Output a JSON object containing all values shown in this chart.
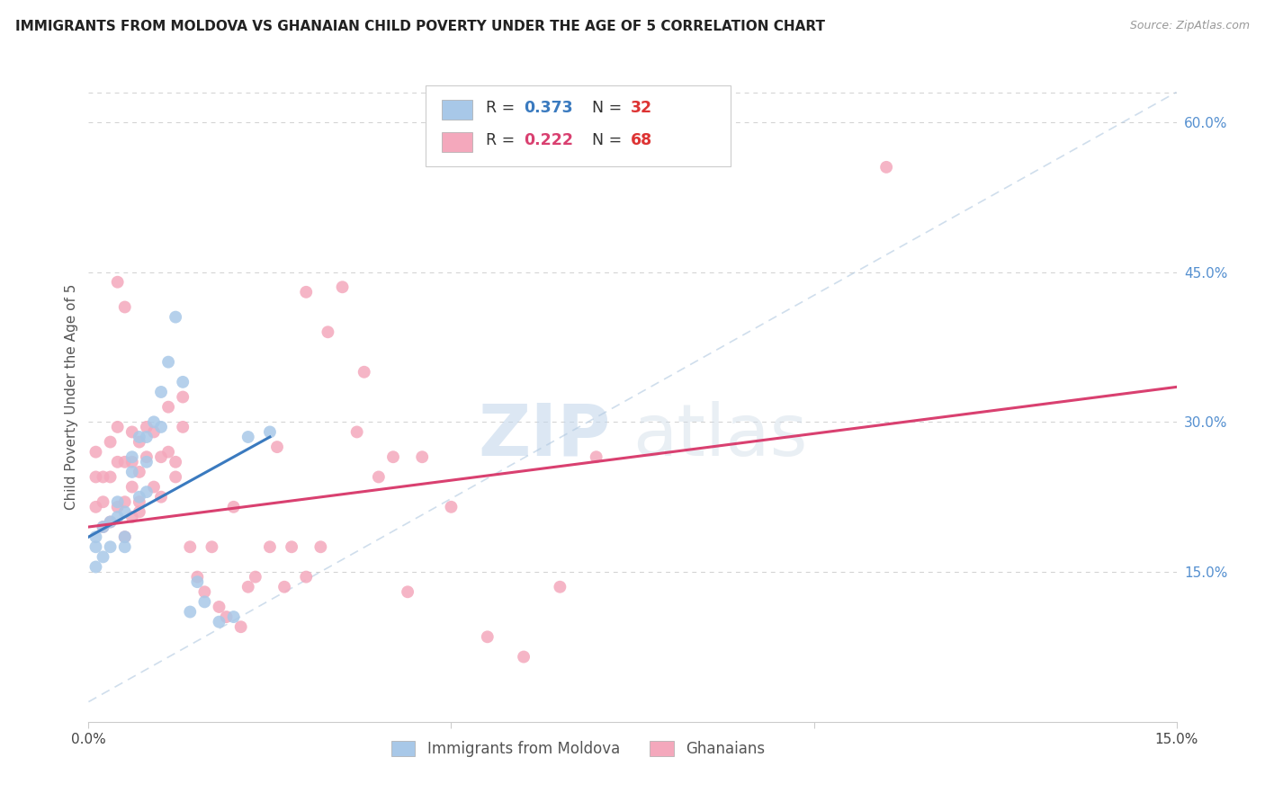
{
  "title": "IMMIGRANTS FROM MOLDOVA VS GHANAIAN CHILD POVERTY UNDER THE AGE OF 5 CORRELATION CHART",
  "source": "Source: ZipAtlas.com",
  "ylabel": "Child Poverty Under the Age of 5",
  "xlim": [
    0.0,
    0.15
  ],
  "ylim": [
    0.0,
    0.65
  ],
  "xticks": [
    0.0,
    0.05,
    0.1,
    0.15
  ],
  "xticklabels": [
    "0.0%",
    "",
    "",
    "15.0%"
  ],
  "yticks_right": [
    0.15,
    0.3,
    0.45,
    0.6
  ],
  "yticklabels_right": [
    "15.0%",
    "30.0%",
    "45.0%",
    "60.0%"
  ],
  "R_moldova": 0.373,
  "N_moldova": 32,
  "R_ghana": 0.222,
  "N_ghana": 68,
  "color_moldova": "#a8c8e8",
  "color_ghana": "#f4a8bc",
  "line_color_moldova": "#3a7abf",
  "line_color_ghana": "#d94070",
  "line_color_diagonal": "#b0c8e0",
  "watermark_zip": "ZIP",
  "watermark_atlas": "atlas",
  "moldova_scatter_x": [
    0.001,
    0.001,
    0.001,
    0.002,
    0.002,
    0.003,
    0.003,
    0.004,
    0.004,
    0.005,
    0.005,
    0.005,
    0.006,
    0.006,
    0.007,
    0.007,
    0.008,
    0.008,
    0.008,
    0.009,
    0.01,
    0.01,
    0.011,
    0.012,
    0.013,
    0.014,
    0.015,
    0.016,
    0.018,
    0.02,
    0.022,
    0.025
  ],
  "moldova_scatter_y": [
    0.155,
    0.175,
    0.185,
    0.165,
    0.195,
    0.2,
    0.175,
    0.205,
    0.22,
    0.185,
    0.21,
    0.175,
    0.265,
    0.25,
    0.285,
    0.225,
    0.285,
    0.26,
    0.23,
    0.3,
    0.33,
    0.295,
    0.36,
    0.405,
    0.34,
    0.11,
    0.14,
    0.12,
    0.1,
    0.105,
    0.285,
    0.29
  ],
  "ghana_scatter_x": [
    0.001,
    0.001,
    0.001,
    0.002,
    0.002,
    0.002,
    0.003,
    0.003,
    0.003,
    0.004,
    0.004,
    0.004,
    0.005,
    0.005,
    0.005,
    0.006,
    0.006,
    0.006,
    0.006,
    0.007,
    0.007,
    0.007,
    0.007,
    0.008,
    0.008,
    0.009,
    0.009,
    0.01,
    0.01,
    0.011,
    0.011,
    0.012,
    0.012,
    0.013,
    0.013,
    0.014,
    0.015,
    0.016,
    0.017,
    0.018,
    0.019,
    0.02,
    0.021,
    0.022,
    0.023,
    0.025,
    0.026,
    0.027,
    0.028,
    0.03,
    0.03,
    0.032,
    0.033,
    0.035,
    0.037,
    0.038,
    0.04,
    0.042,
    0.044,
    0.046,
    0.05,
    0.055,
    0.06,
    0.065,
    0.07,
    0.11,
    0.004,
    0.005
  ],
  "ghana_scatter_y": [
    0.215,
    0.245,
    0.27,
    0.195,
    0.22,
    0.245,
    0.2,
    0.245,
    0.28,
    0.215,
    0.26,
    0.295,
    0.185,
    0.22,
    0.26,
    0.205,
    0.235,
    0.26,
    0.29,
    0.22,
    0.25,
    0.28,
    0.21,
    0.295,
    0.265,
    0.235,
    0.29,
    0.225,
    0.265,
    0.27,
    0.315,
    0.26,
    0.245,
    0.295,
    0.325,
    0.175,
    0.145,
    0.13,
    0.175,
    0.115,
    0.105,
    0.215,
    0.095,
    0.135,
    0.145,
    0.175,
    0.275,
    0.135,
    0.175,
    0.145,
    0.43,
    0.175,
    0.39,
    0.435,
    0.29,
    0.35,
    0.245,
    0.265,
    0.13,
    0.265,
    0.215,
    0.085,
    0.065,
    0.135,
    0.265,
    0.555,
    0.44,
    0.415
  ],
  "moldova_line_x": [
    0.0,
    0.025
  ],
  "moldova_line_y": [
    0.185,
    0.285
  ],
  "ghana_line_x": [
    0.0,
    0.15
  ],
  "ghana_line_y": [
    0.195,
    0.335
  ],
  "diag_line_x": [
    0.0,
    0.15
  ],
  "diag_line_y": [
    0.02,
    0.63
  ]
}
